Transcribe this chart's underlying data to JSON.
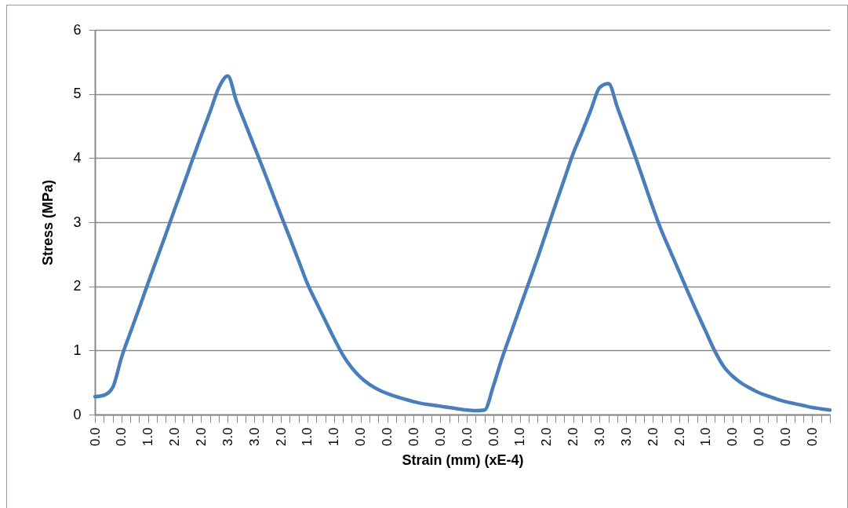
{
  "chart_data": {
    "type": "line",
    "xlabel": "Strain (mm) (xE-4)",
    "ylabel": "Stress (MPa)",
    "categories": [
      "0.0",
      null,
      null,
      "0.0",
      null,
      null,
      "1.0",
      null,
      null,
      "2.0",
      null,
      null,
      "2.0",
      null,
      null,
      "3.0",
      null,
      null,
      "3.0",
      null,
      null,
      "2.0",
      null,
      null,
      "1.0",
      null,
      null,
      "1.0",
      null,
      null,
      "0.0",
      null,
      null,
      "0.0",
      null,
      null,
      "0.0",
      null,
      null,
      "0.0",
      null,
      null,
      "0.0",
      null,
      null,
      "0.0",
      null,
      null,
      "1.0",
      null,
      null,
      "2.0",
      null,
      null,
      "2.0",
      null,
      null,
      "3.0",
      null,
      null,
      "3.0",
      null,
      null,
      "2.0",
      null,
      null,
      "2.0",
      null,
      null,
      "1.0",
      null,
      null,
      "0.0",
      null,
      null,
      "0.0",
      null,
      null,
      "0.0",
      null,
      null,
      "0.0",
      null,
      null
    ],
    "series": [
      {
        "color": "#4a7ebb",
        "values": [
          0.28,
          0.3,
          0.42,
          0.89,
          1.28,
          1.66,
          2.05,
          2.43,
          2.81,
          3.2,
          3.58,
          3.97,
          4.35,
          4.72,
          5.1,
          5.28,
          4.88,
          4.53,
          4.18,
          3.83,
          3.47,
          3.11,
          2.76,
          2.4,
          2.04,
          1.75,
          1.47,
          1.19,
          0.93,
          0.73,
          0.58,
          0.47,
          0.39,
          0.33,
          0.28,
          0.24,
          0.2,
          0.17,
          0.15,
          0.13,
          0.11,
          0.09,
          0.07,
          0.06,
          0.07,
          0.45,
          0.89,
          1.28,
          1.67,
          2.06,
          2.45,
          2.86,
          3.27,
          3.67,
          4.07,
          4.4,
          4.75,
          5.1,
          5.16,
          4.79,
          4.41,
          4.03,
          3.63,
          3.23,
          2.86,
          2.54,
          2.22,
          1.9,
          1.59,
          1.29,
          0.99,
          0.75,
          0.6,
          0.49,
          0.41,
          0.34,
          0.29,
          0.24,
          0.2,
          0.17,
          0.14,
          0.11,
          0.09,
          0.07
        ]
      }
    ],
    "ylim": [
      0,
      6
    ],
    "yticks": [
      0,
      1,
      2,
      3,
      4,
      5,
      6
    ],
    "grid": "y",
    "marker": "none",
    "line_style": "solid"
  }
}
